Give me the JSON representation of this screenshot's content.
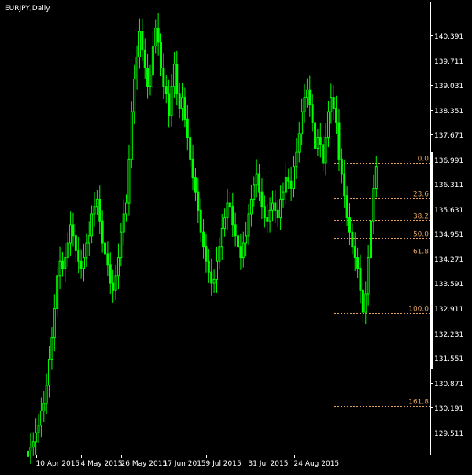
{
  "title": "EURJPY,Daily",
  "colors": {
    "background": "#000000",
    "frame": "#ffffff",
    "candle": "#00ff00",
    "fibonacci": "#e0a060",
    "text": "#ffffff"
  },
  "chart_data": {
    "type": "candlestick",
    "symbol": "EURJPY",
    "timeframe": "Daily",
    "grid": false,
    "ylim": [
      128.9,
      141.3
    ],
    "y_ticks": [
      "140.391",
      "139.711",
      "139.031",
      "138.351",
      "137.671",
      "136.991",
      "136.311",
      "135.631",
      "134.951",
      "134.271",
      "133.591",
      "132.911",
      "132.231",
      "131.551",
      "130.871",
      "130.191",
      "129.511"
    ],
    "x_ticks": [
      {
        "label": "10 Apr 2015",
        "index": 3
      },
      {
        "label": "4 May 2015",
        "index": 20
      },
      {
        "label": "26 May 2015",
        "index": 35
      },
      {
        "label": "17 Jun 2015",
        "index": 51
      },
      {
        "label": "9 Jul 2015",
        "index": 67
      },
      {
        "label": "31 Jul 2015",
        "index": 83
      },
      {
        "label": "24 Aug 2015",
        "index": 100
      }
    ],
    "closes": [
      129.0,
      129.1,
      129.25,
      129.5,
      129.7,
      130.1,
      130.3,
      130.8,
      131.5,
      132.1,
      132.9,
      133.8,
      134.2,
      134.0,
      134.3,
      134.7,
      135.2,
      134.9,
      134.5,
      134.2,
      134.0,
      134.3,
      134.7,
      134.9,
      135.5,
      135.7,
      135.9,
      135.3,
      134.7,
      134.4,
      134.1,
      133.6,
      133.4,
      133.8,
      134.3,
      135.0,
      135.5,
      135.8,
      137.0,
      138.3,
      139.2,
      139.8,
      140.5,
      140.0,
      139.5,
      139.0,
      139.3,
      140.1,
      140.6,
      140.2,
      139.5,
      139.0,
      138.8,
      138.2,
      139.0,
      139.6,
      138.8,
      138.4,
      138.7,
      138.1,
      137.6,
      137.0,
      136.5,
      136.1,
      135.6,
      135.0,
      134.6,
      134.2,
      133.9,
      133.6,
      133.7,
      134.2,
      134.6,
      135.1,
      135.4,
      135.8,
      135.7,
      135.2,
      134.9,
      134.6,
      134.3,
      134.7,
      134.9,
      135.5,
      135.9,
      136.3,
      136.6,
      136.1,
      135.7,
      135.4,
      135.3,
      135.6,
      135.8,
      135.6,
      135.4,
      135.9,
      136.1,
      136.5,
      136.4,
      136.2,
      136.8,
      137.2,
      137.7,
      138.3,
      138.7,
      138.9,
      138.5,
      138.0,
      137.3,
      137.6,
      137.4,
      136.9,
      137.6,
      138.3,
      138.7,
      138.4,
      138.0,
      137.0,
      136.6,
      136.0,
      135.4,
      135.0,
      134.6,
      134.3,
      134.0,
      133.4,
      132.8,
      133.3,
      134.3,
      135.3,
      136.2,
      136.8
    ],
    "fibonacci_retracement": {
      "levels": [
        {
          "label": "0.0",
          "price": 136.89
        },
        {
          "label": "23.6",
          "price": 135.92
        },
        {
          "label": "38.2",
          "price": 135.32
        },
        {
          "label": "50.0",
          "price": 134.83
        },
        {
          "label": "61.8",
          "price": 134.35
        },
        {
          "label": "100.0",
          "price": 132.78
        },
        {
          "label": "161.8",
          "price": 130.24
        }
      ]
    }
  }
}
